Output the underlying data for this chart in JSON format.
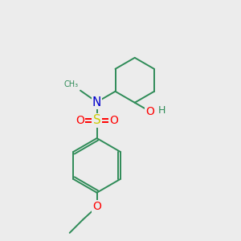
{
  "background_color": "#ececec",
  "atom_colors": {
    "N": "#0000cc",
    "O": "#ff0000",
    "S": "#cccc00",
    "C": "#2e8b57",
    "H": "#2e8b57"
  },
  "bond_color": "#2e8b57",
  "figsize": [
    3.0,
    3.0
  ],
  "dpi": 100
}
